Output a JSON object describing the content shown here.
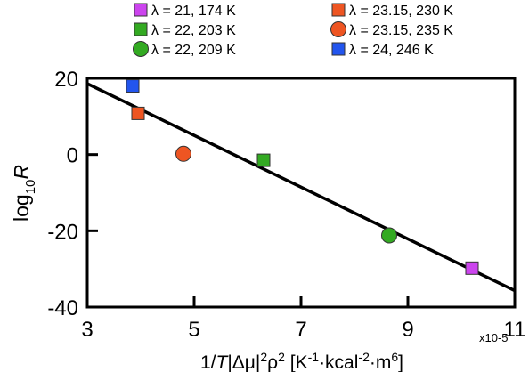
{
  "chart_data": {
    "type": "scatter",
    "x_multiplier": "x10-5",
    "xlabel": {
      "pre": "1/",
      "T": "T",
      "mid": "|Δμ|",
      "s1": "2",
      "rho": "ρ",
      "s2": "2",
      "open": " [K",
      "s3": "-1",
      "k1": "·kcal",
      "s4": "-2",
      "k2": "·m",
      "s5": "6",
      "close": "]"
    },
    "ylabel": {
      "log": "log",
      "sub": "10",
      "R": "R"
    },
    "xlim": [
      3,
      11
    ],
    "ylim": [
      -40,
      20
    ],
    "xticks": [
      "3",
      "5",
      "7",
      "9",
      "11"
    ],
    "yticks": [
      "20",
      "0",
      "-20",
      "-40"
    ],
    "series": [
      {
        "name": "λ = 21, 174 K",
        "color": "#cc44ee",
        "marker": "square",
        "x": [
          10.2
        ],
        "y": [
          -29.8
        ]
      },
      {
        "name": "λ = 22, 203 K",
        "color": "#33aa22",
        "marker": "square",
        "x": [
          6.3
        ],
        "y": [
          -1.5
        ]
      },
      {
        "name": "λ = 22, 209 K",
        "color": "#33aa22",
        "marker": "circle",
        "x": [
          8.65
        ],
        "y": [
          -21.2
        ]
      },
      {
        "name": "λ = 23.15, 230 K",
        "color": "#ee5522",
        "marker": "square",
        "x": [
          3.95
        ],
        "y": [
          10.8
        ]
      },
      {
        "name": "λ = 23.15, 235 K",
        "color": "#ee5522",
        "marker": "circle",
        "x": [
          4.8
        ],
        "y": [
          0.2
        ]
      },
      {
        "name": "λ = 24, 246 K",
        "color": "#2255ee",
        "marker": "square",
        "x": [
          3.85
        ],
        "y": [
          18.0
        ]
      }
    ],
    "fit_line": {
      "x": [
        3,
        11
      ],
      "y": [
        18.6,
        -35.7
      ]
    }
  }
}
